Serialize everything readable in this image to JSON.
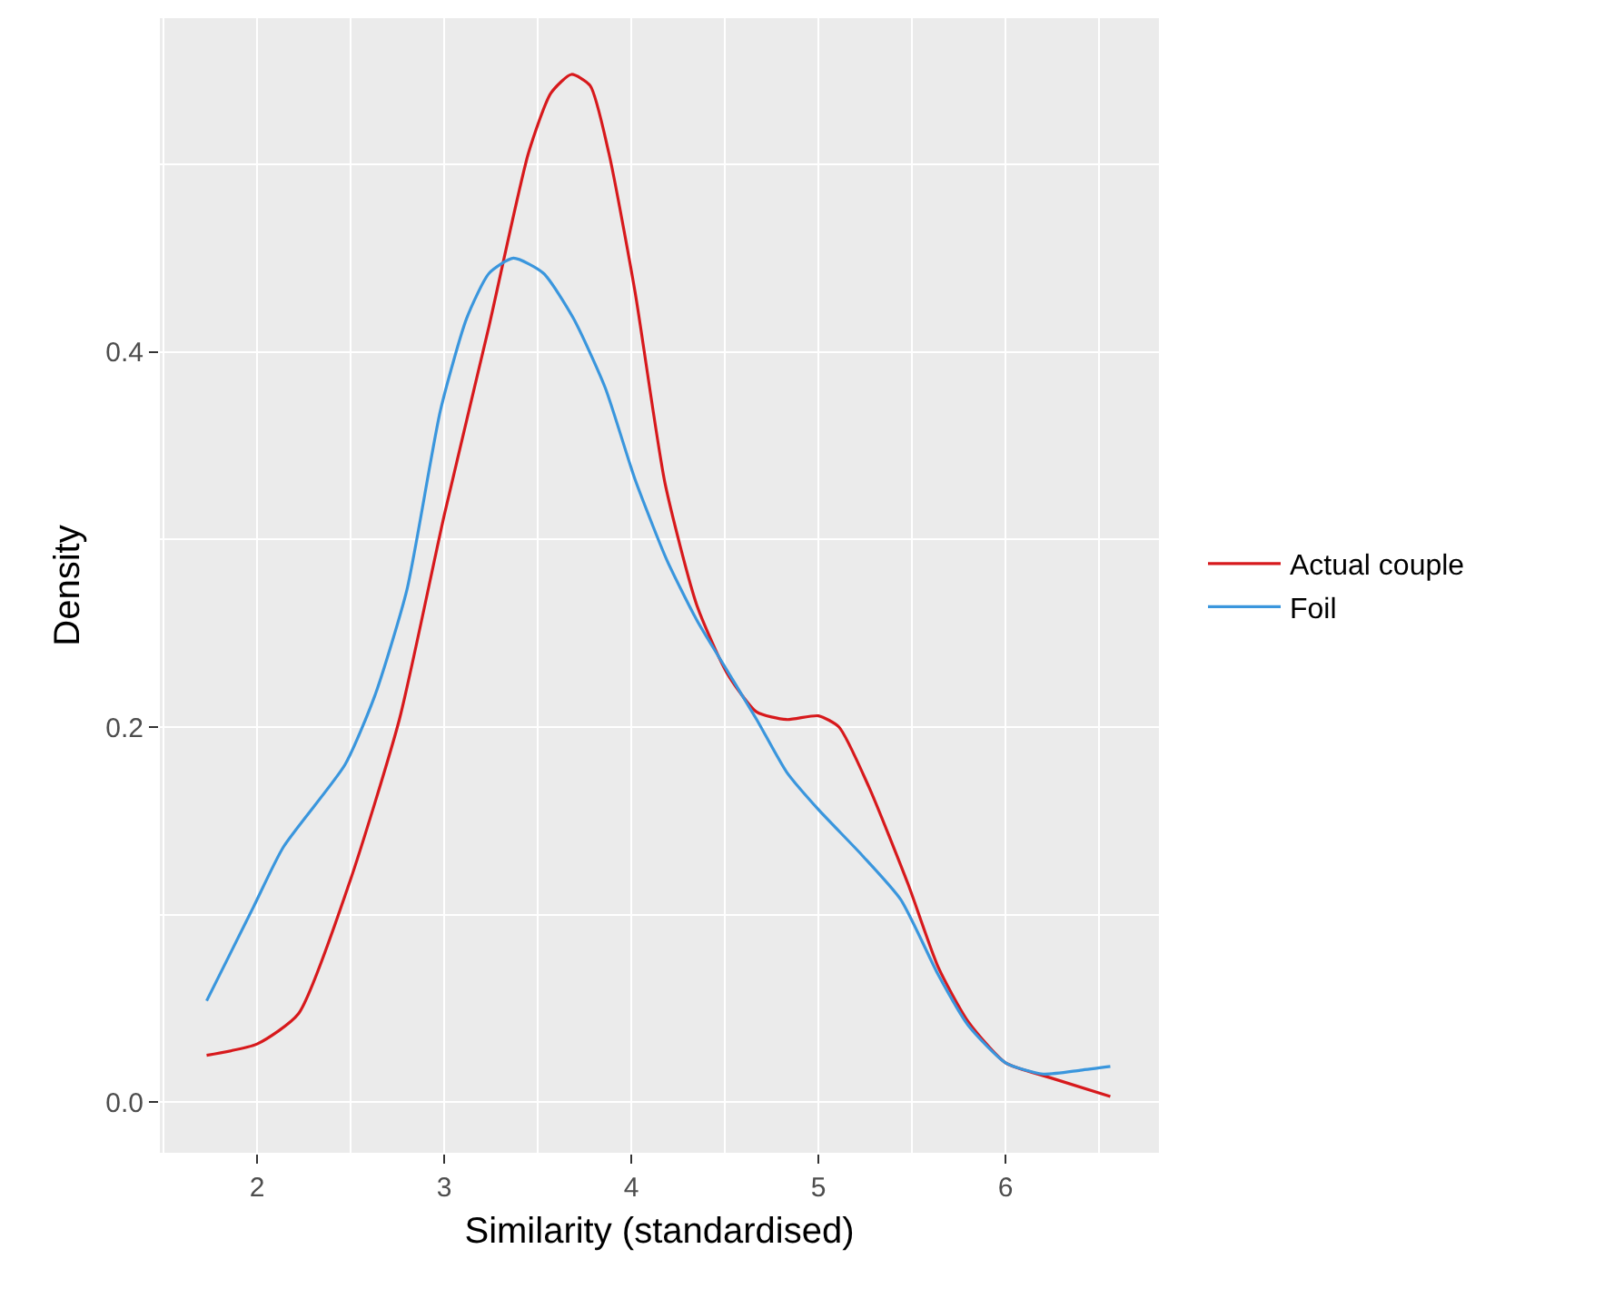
{
  "chart_data": {
    "type": "line",
    "xlabel": "Similarity (standardised)",
    "ylabel": "Density",
    "xlim": [
      1.48,
      6.82
    ],
    "ylim": [
      -0.027,
      0.578
    ],
    "xticks": [
      2,
      3,
      4,
      5,
      6
    ],
    "yticks": [
      {
        "value": 0,
        "label": "0.0"
      },
      {
        "value": 0.2,
        "label": "0.2"
      },
      {
        "value": 0.4,
        "label": "0.4"
      }
    ],
    "grid": true,
    "legend": "right",
    "marker": "none",
    "line_style": "solid",
    "series": [
      {
        "name": "Actual couple",
        "color": "#d7191c",
        "x": [
          1.73,
          2.0,
          2.22,
          2.49,
          2.76,
          3.0,
          3.24,
          3.45,
          3.57,
          3.68,
          3.78,
          3.88,
          4.02,
          4.18,
          4.35,
          4.51,
          4.67,
          4.83,
          5.0,
          5.11,
          5.27,
          5.48,
          5.64,
          5.8,
          6.0,
          6.24,
          6.56
        ],
        "values": [
          0.025,
          0.031,
          0.047,
          0.116,
          0.204,
          0.313,
          0.414,
          0.506,
          0.538,
          0.548,
          0.542,
          0.506,
          0.432,
          0.33,
          0.265,
          0.229,
          0.208,
          0.204,
          0.206,
          0.2,
          0.168,
          0.116,
          0.072,
          0.043,
          0.021,
          0.013,
          0.003
        ]
      },
      {
        "name": "Foil",
        "color": "#3a96dd",
        "x": [
          1.73,
          1.98,
          2.14,
          2.47,
          2.63,
          2.8,
          2.98,
          3.12,
          3.24,
          3.37,
          3.53,
          3.69,
          3.86,
          4.02,
          4.19,
          4.35,
          4.47,
          4.67,
          4.83,
          5.0,
          5.23,
          5.44,
          5.64,
          5.8,
          6.0,
          6.2,
          6.4,
          6.56
        ],
        "values": [
          0.054,
          0.104,
          0.136,
          0.18,
          0.217,
          0.273,
          0.369,
          0.418,
          0.442,
          0.45,
          0.442,
          0.418,
          0.381,
          0.332,
          0.289,
          0.257,
          0.237,
          0.204,
          0.176,
          0.156,
          0.132,
          0.108,
          0.068,
          0.041,
          0.021,
          0.015,
          0.017,
          0.019
        ]
      }
    ]
  }
}
